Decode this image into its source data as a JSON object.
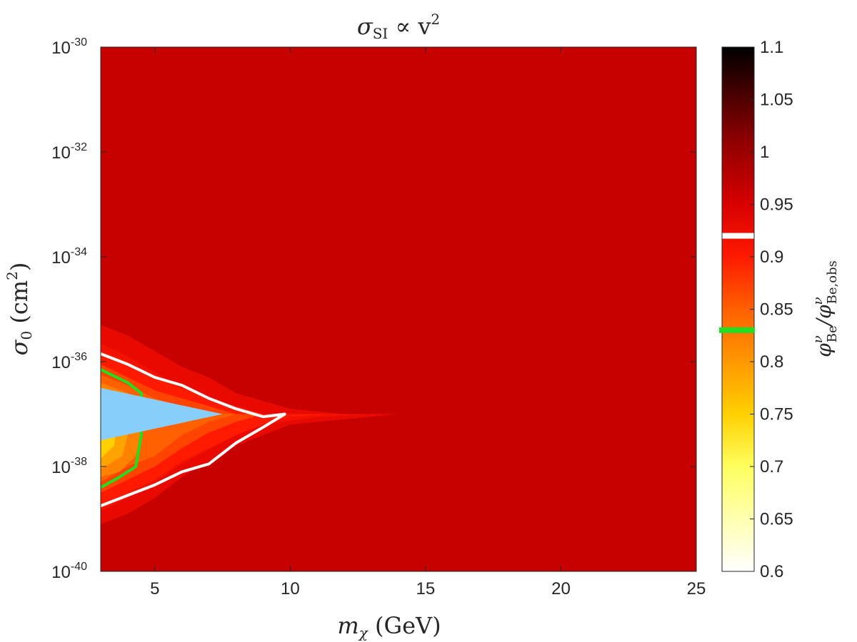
{
  "chart_data": {
    "type": "heatmap",
    "title": "σSI ∝ v²",
    "title_parts": {
      "sigma": "σ",
      "sub": "SI",
      "mid": " ∝ v",
      "sup": "2"
    },
    "xlabel": "mχ (GeV)",
    "xlabel_parts": {
      "m": "m",
      "sub": "χ",
      "rest": " (GeV)"
    },
    "ylabel": "σ0 (cm²)",
    "ylabel_parts": {
      "sigma": "σ",
      "sub": "0",
      "mid": " (cm",
      "sup": "2",
      "end": ")"
    },
    "colorbar_label": "φνBe/φνBe,obs",
    "colorbar_label_parts": {
      "phi": "φ",
      "nu": "ν",
      "sub1": "Be",
      "slash": "/φ",
      "nu2": "ν",
      "sub2": "Be,obs"
    },
    "xlim": [
      3,
      25
    ],
    "ylim_log10": [
      -40,
      -30
    ],
    "y_scale": "log",
    "x_ticks": [
      {
        "value": 5,
        "label": "5"
      },
      {
        "value": 10,
        "label": "10"
      },
      {
        "value": 15,
        "label": "15"
      },
      {
        "value": 20,
        "label": "20"
      },
      {
        "value": 25,
        "label": "25"
      }
    ],
    "y_ticks": [
      {
        "exp": -30,
        "base": "10",
        "sup": "-30"
      },
      {
        "exp": -32,
        "base": "10",
        "sup": "-32"
      },
      {
        "exp": -34,
        "base": "10",
        "sup": "-34"
      },
      {
        "exp": -36,
        "base": "10",
        "sup": "-36"
      },
      {
        "exp": -38,
        "base": "10",
        "sup": "-38"
      },
      {
        "exp": -40,
        "base": "10",
        "sup": "-40"
      }
    ],
    "colorbar": {
      "range": [
        0.6,
        1.1
      ],
      "ticks": [
        {
          "value": 1.1,
          "label": "1.1"
        },
        {
          "value": 1.05,
          "label": "1.05"
        },
        {
          "value": 1.0,
          "label": "1"
        },
        {
          "value": 0.95,
          "label": "0.95"
        },
        {
          "value": 0.9,
          "label": "0.9"
        },
        {
          "value": 0.85,
          "label": "0.85"
        },
        {
          "value": 0.8,
          "label": "0.8"
        },
        {
          "value": 0.75,
          "label": "0.75"
        },
        {
          "value": 0.7,
          "label": "0.7"
        },
        {
          "value": 0.65,
          "label": "0.65"
        },
        {
          "value": 0.6,
          "label": "0.6"
        }
      ],
      "gap_value": 0.92,
      "green_marker_value": 0.83,
      "colormap": "hot"
    },
    "background_value": 0.95,
    "contour_bands": [
      {
        "level": 0.93,
        "points": [
          [
            3,
            -35.3
          ],
          [
            4,
            -35.5
          ],
          [
            5,
            -35.8
          ],
          [
            6,
            -36.1
          ],
          [
            7,
            -36.3
          ],
          [
            8,
            -36.6
          ],
          [
            10,
            -36.9
          ],
          [
            12,
            -37.0
          ],
          [
            14,
            -37.0
          ],
          [
            17,
            -37.0
          ],
          [
            14,
            -37.0
          ],
          [
            12,
            -37.1
          ],
          [
            10,
            -37.2
          ],
          [
            8,
            -37.6
          ],
          [
            6,
            -38.2
          ],
          [
            5,
            -38.6
          ],
          [
            4,
            -38.9
          ],
          [
            3,
            -39.1
          ]
        ]
      },
      {
        "level": 0.915,
        "points": [
          [
            3,
            -35.65
          ],
          [
            4,
            -35.9
          ],
          [
            5,
            -36.2
          ],
          [
            6,
            -36.5
          ],
          [
            7,
            -36.7
          ],
          [
            8,
            -36.9
          ],
          [
            9,
            -37.0
          ],
          [
            11,
            -37.0
          ],
          [
            13.5,
            -37.0
          ],
          [
            11,
            -37.05
          ],
          [
            9,
            -37.2
          ],
          [
            8,
            -37.4
          ],
          [
            6,
            -37.95
          ],
          [
            5,
            -38.3
          ],
          [
            4,
            -38.6
          ],
          [
            3,
            -38.85
          ]
        ]
      },
      {
        "level": 0.9,
        "points": [
          [
            3,
            -35.8
          ],
          [
            4,
            -36.0
          ],
          [
            5,
            -36.3
          ],
          [
            6,
            -36.5
          ],
          [
            7,
            -36.7
          ],
          [
            8,
            -36.85
          ],
          [
            9,
            -37.0
          ],
          [
            10,
            -37.0
          ],
          [
            11.5,
            -37.0
          ],
          [
            10,
            -37.05
          ],
          [
            9,
            -37.2
          ],
          [
            8,
            -37.4
          ],
          [
            6,
            -37.9
          ],
          [
            5,
            -38.25
          ],
          [
            4,
            -38.5
          ],
          [
            3,
            -38.75
          ]
        ]
      },
      {
        "level": 0.87,
        "points": [
          [
            3,
            -36.05
          ],
          [
            4,
            -36.3
          ],
          [
            5,
            -36.55
          ],
          [
            6,
            -36.7
          ],
          [
            7,
            -36.85
          ],
          [
            8,
            -37.0
          ],
          [
            9,
            -37.0
          ],
          [
            8,
            -37.15
          ],
          [
            7,
            -37.35
          ],
          [
            6,
            -37.65
          ],
          [
            5,
            -38.0
          ],
          [
            4,
            -38.25
          ],
          [
            3,
            -38.5
          ]
        ]
      },
      {
        "level": 0.85,
        "points": [
          [
            3,
            -36.25
          ],
          [
            4,
            -36.45
          ],
          [
            5,
            -36.7
          ],
          [
            6,
            -36.85
          ],
          [
            7,
            -37.0
          ],
          [
            8,
            -37.0
          ],
          [
            7,
            -37.15
          ],
          [
            6,
            -37.4
          ],
          [
            5,
            -37.8
          ],
          [
            4,
            -38.0
          ],
          [
            3,
            -38.3
          ]
        ]
      },
      {
        "level": 0.82,
        "points": [
          [
            3,
            -36.4
          ],
          [
            4,
            -36.6
          ],
          [
            4.5,
            -36.85
          ],
          [
            4.5,
            -37.3
          ],
          [
            4.3,
            -37.8
          ],
          [
            3.7,
            -38.1
          ],
          [
            3,
            -38.2
          ]
        ]
      },
      {
        "level": 0.79,
        "points": [
          [
            3,
            -36.55
          ],
          [
            3.7,
            -36.75
          ],
          [
            4.0,
            -37.0
          ],
          [
            4.0,
            -37.4
          ],
          [
            3.8,
            -37.8
          ],
          [
            3,
            -38.05
          ]
        ]
      },
      {
        "level": 0.75,
        "points": [
          [
            3,
            -36.7
          ],
          [
            3.5,
            -36.85
          ],
          [
            3.6,
            -37.1
          ],
          [
            3.5,
            -37.6
          ],
          [
            3,
            -37.85
          ]
        ]
      },
      {
        "level": 0.7,
        "points": [
          [
            3,
            -36.8
          ],
          [
            3.3,
            -36.9
          ],
          [
            3.35,
            -37.2
          ],
          [
            3,
            -37.5
          ]
        ]
      }
    ],
    "contour_lines": [
      {
        "name": "white",
        "color": "#ffffff",
        "points": [
          [
            3,
            -35.85
          ],
          [
            4,
            -36.05
          ],
          [
            5,
            -36.3
          ],
          [
            6,
            -36.45
          ],
          [
            7,
            -36.7
          ],
          [
            8,
            -36.9
          ],
          [
            9,
            -37.05
          ],
          [
            9.8,
            -37.0
          ],
          [
            9,
            -37.25
          ],
          [
            8,
            -37.55
          ],
          [
            7,
            -37.95
          ],
          [
            6,
            -38.1
          ],
          [
            5,
            -38.35
          ],
          [
            4,
            -38.55
          ],
          [
            3,
            -38.75
          ]
        ]
      },
      {
        "name": "green",
        "color": "#22dd22",
        "points": [
          [
            3,
            -36.15
          ],
          [
            4,
            -36.4
          ],
          [
            4.5,
            -36.6
          ],
          [
            4.5,
            -37.4
          ],
          [
            4.3,
            -38.0
          ],
          [
            3.7,
            -38.2
          ],
          [
            3,
            -38.4
          ]
        ]
      }
    ],
    "excluded_region": {
      "color": "#87cefa",
      "points": [
        [
          3,
          -36.5
        ],
        [
          7.5,
          -37.0
        ],
        [
          3,
          -37.5
        ]
      ]
    }
  }
}
